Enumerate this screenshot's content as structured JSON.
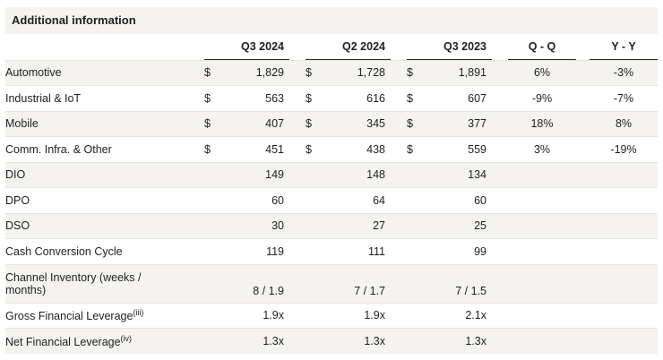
{
  "title": "Additional information",
  "columns": {
    "q3_2024": "Q3 2024",
    "q2_2024": "Q2 2024",
    "q3_2023": "Q3 2023",
    "qq": "Q - Q",
    "yy": "Y - Y"
  },
  "rows": [
    {
      "label": "Automotive",
      "cur": "$",
      "q3_2024": "1,829",
      "q2_2024": "1,728",
      "q3_2023": "1,891",
      "qq": "6%",
      "yy": "-3%"
    },
    {
      "label": "Industrial & IoT",
      "cur": "$",
      "q3_2024": "563",
      "q2_2024": "616",
      "q3_2023": "607",
      "qq": "-9%",
      "yy": "-7%"
    },
    {
      "label": "Mobile",
      "cur": "$",
      "q3_2024": "407",
      "q2_2024": "345",
      "q3_2023": "377",
      "qq": "18%",
      "yy": "8%"
    },
    {
      "label": "Comm. Infra. & Other",
      "cur": "$",
      "q3_2024": "451",
      "q2_2024": "438",
      "q3_2023": "559",
      "qq": "3%",
      "yy": "-19%"
    },
    {
      "label": "DIO",
      "cur": "",
      "q3_2024": "149",
      "q2_2024": "148",
      "q3_2023": "134",
      "qq": "",
      "yy": ""
    },
    {
      "label": "DPO",
      "cur": "",
      "q3_2024": "60",
      "q2_2024": "64",
      "q3_2023": "60",
      "qq": "",
      "yy": ""
    },
    {
      "label": "DSO",
      "cur": "",
      "q3_2024": "30",
      "q2_2024": "27",
      "q3_2023": "25",
      "qq": "",
      "yy": ""
    },
    {
      "label": "Cash Conversion Cycle",
      "cur": "",
      "q3_2024": "119",
      "q2_2024": "111",
      "q3_2023": "99",
      "qq": "",
      "yy": ""
    },
    {
      "label": "Channel Inventory (weeks / months)",
      "cur": "",
      "q3_2024": "8 / 1.9",
      "q2_2024": "7 / 1.7",
      "q3_2023": "7 / 1.5",
      "qq": "",
      "yy": ""
    },
    {
      "label": "Gross Financial Leverage",
      "sup": "(iii)",
      "cur": "",
      "q3_2024": "1.9x",
      "q2_2024": "1.9x",
      "q3_2023": "2.1x",
      "qq": "",
      "yy": ""
    },
    {
      "label": "Net Financial Leverage",
      "sup": "(iv)",
      "cur": "",
      "q3_2024": "1.3x",
      "q2_2024": "1.3x",
      "q3_2023": "1.3x",
      "qq": "",
      "yy": ""
    }
  ]
}
